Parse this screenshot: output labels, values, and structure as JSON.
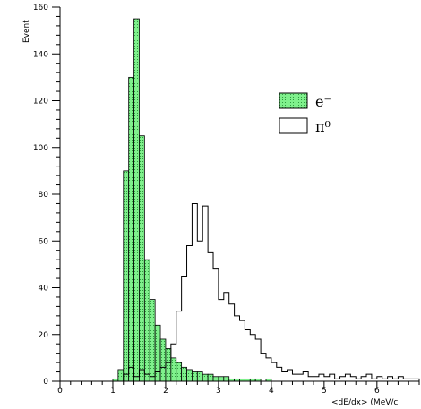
{
  "chart_data": {
    "type": "histogram",
    "title": "",
    "xlabel": "<dE/dx> (MeV/c",
    "ylabel": "Event",
    "xlim": [
      0,
      6.8
    ],
    "ylim": [
      0,
      160
    ],
    "xticks": [
      0,
      1,
      2,
      3,
      4,
      5,
      6
    ],
    "yticks": [
      0,
      20,
      40,
      60,
      80,
      100,
      120,
      140,
      160
    ],
    "bin_width": 0.1,
    "legend_position": "top-right",
    "series": [
      {
        "name": "e⁻",
        "style": "filled",
        "fill_color": "#66e07a",
        "edges": [
          1.0,
          1.1,
          1.2,
          1.3,
          1.4,
          1.5,
          1.6,
          1.7,
          1.8,
          1.9,
          2.0,
          2.1,
          2.2,
          2.3,
          2.4,
          2.5,
          2.6,
          2.7,
          2.8,
          2.9,
          3.0,
          3.1,
          3.2,
          3.3,
          3.4,
          3.5,
          3.6,
          3.7,
          3.8,
          3.9,
          4.0,
          4.1
        ],
        "values": [
          1,
          5,
          90,
          130,
          155,
          105,
          52,
          35,
          24,
          18,
          14,
          10,
          8,
          6,
          5,
          4,
          4,
          3,
          3,
          2,
          2,
          2,
          1,
          1,
          1,
          1,
          1,
          1,
          0,
          1,
          0
        ]
      },
      {
        "name": "π⁰",
        "style": "outline",
        "edges": [
          1.0,
          1.1,
          1.2,
          1.3,
          1.4,
          1.5,
          1.6,
          1.7,
          1.8,
          1.9,
          2.0,
          2.1,
          2.2,
          2.3,
          2.4,
          2.5,
          2.6,
          2.7,
          2.8,
          2.9,
          3.0,
          3.1,
          3.2,
          3.3,
          3.4,
          3.5,
          3.6,
          3.7,
          3.8,
          3.9,
          4.0,
          4.1,
          4.2,
          4.3,
          4.4,
          4.5,
          4.6,
          4.7,
          4.8,
          4.9,
          5.0,
          5.1,
          5.2,
          5.3,
          5.4,
          5.5,
          5.6,
          5.7,
          5.8,
          5.9,
          6.0,
          6.1,
          6.2,
          6.3,
          6.4,
          6.5,
          6.6,
          6.7,
          6.8
        ],
        "values": [
          0,
          0,
          3,
          6,
          2,
          5,
          3,
          2,
          4,
          6,
          8,
          16,
          30,
          45,
          58,
          76,
          60,
          75,
          55,
          48,
          35,
          38,
          33,
          28,
          26,
          22,
          20,
          18,
          12,
          10,
          8,
          6,
          4,
          5,
          3,
          3,
          4,
          2,
          2,
          3,
          2,
          3,
          1,
          2,
          3,
          2,
          1,
          2,
          3,
          1,
          2,
          1,
          2,
          1,
          2,
          1,
          1,
          1
        ]
      }
    ]
  }
}
